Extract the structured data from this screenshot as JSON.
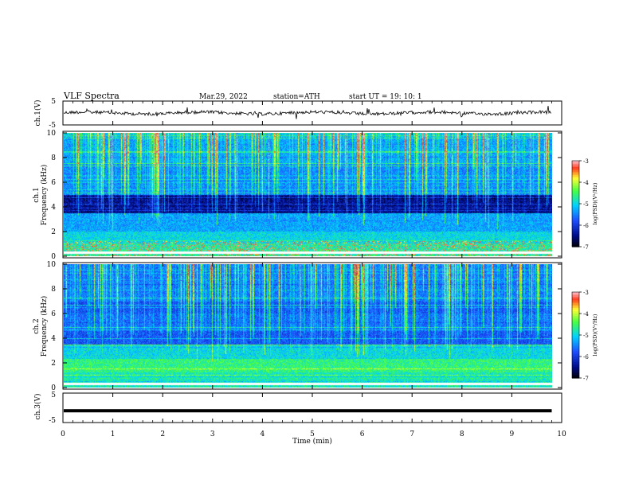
{
  "header": {
    "title": "VLF  Spectra",
    "date": "Mar.29, 2022",
    "station": "station=ATH",
    "start": "start  UT  =    19: 10: 1"
  },
  "chart_data": [
    {
      "type": "line",
      "panel": "ch1-waveform",
      "ylabel": "ch.1(V)",
      "ylim": [
        -5,
        5
      ],
      "yticks": [
        "5",
        "-5"
      ],
      "x_range_min": [
        0,
        9.8
      ],
      "description_color": "#000000"
    },
    {
      "type": "heatmap",
      "panel": "ch1-spectrogram",
      "ylabel": "ch.1\nFrequency (kHz)",
      "ylabel_line1": "ch.1",
      "ylabel_line2": "Frequency  (kHz)",
      "ylim": [
        0,
        10
      ],
      "yticks": [
        "0",
        "2",
        "4",
        "6",
        "8",
        "10"
      ],
      "colorbar": {
        "label": "log(PSD)(V²/Hz)",
        "range": [
          -7,
          -3
        ],
        "ticks": [
          "-3",
          "-4",
          "-5",
          "-6",
          "-7"
        ]
      }
    },
    {
      "type": "heatmap",
      "panel": "ch2-spectrogram",
      "ylabel_line1": "ch.2",
      "ylabel_line2": "Frequency  (kHz)",
      "ylim": [
        0,
        10
      ],
      "yticks": [
        "0",
        "2",
        "4",
        "6",
        "8",
        "10"
      ],
      "colorbar": {
        "label": "log(PSD)(V²/Hz)",
        "range": [
          -7,
          -3
        ],
        "ticks": [
          "-3",
          "-4",
          "-5",
          "-6",
          "-7"
        ]
      }
    },
    {
      "type": "line",
      "panel": "ch3-waveform",
      "ylabel": "ch.3(V)",
      "ylim": [
        -5,
        5
      ],
      "yticks": [
        "5",
        "-5"
      ],
      "level": -1
    }
  ],
  "xaxis": {
    "label": "Time  (min)",
    "ticks": [
      "0",
      "1",
      "2",
      "3",
      "4",
      "5",
      "6",
      "7",
      "8",
      "9",
      "10"
    ],
    "range": [
      0,
      10
    ],
    "data_end": 9.8
  },
  "colorbar_label": "log(PSD)(V²/Hz)",
  "colors": {
    "background": "#000010",
    "deep": "#000c8a",
    "blue": "#1e4dff",
    "cyan": "#00d2ff",
    "green": "#44ff44",
    "yellow": "#ffff33",
    "red": "#ff2020"
  }
}
